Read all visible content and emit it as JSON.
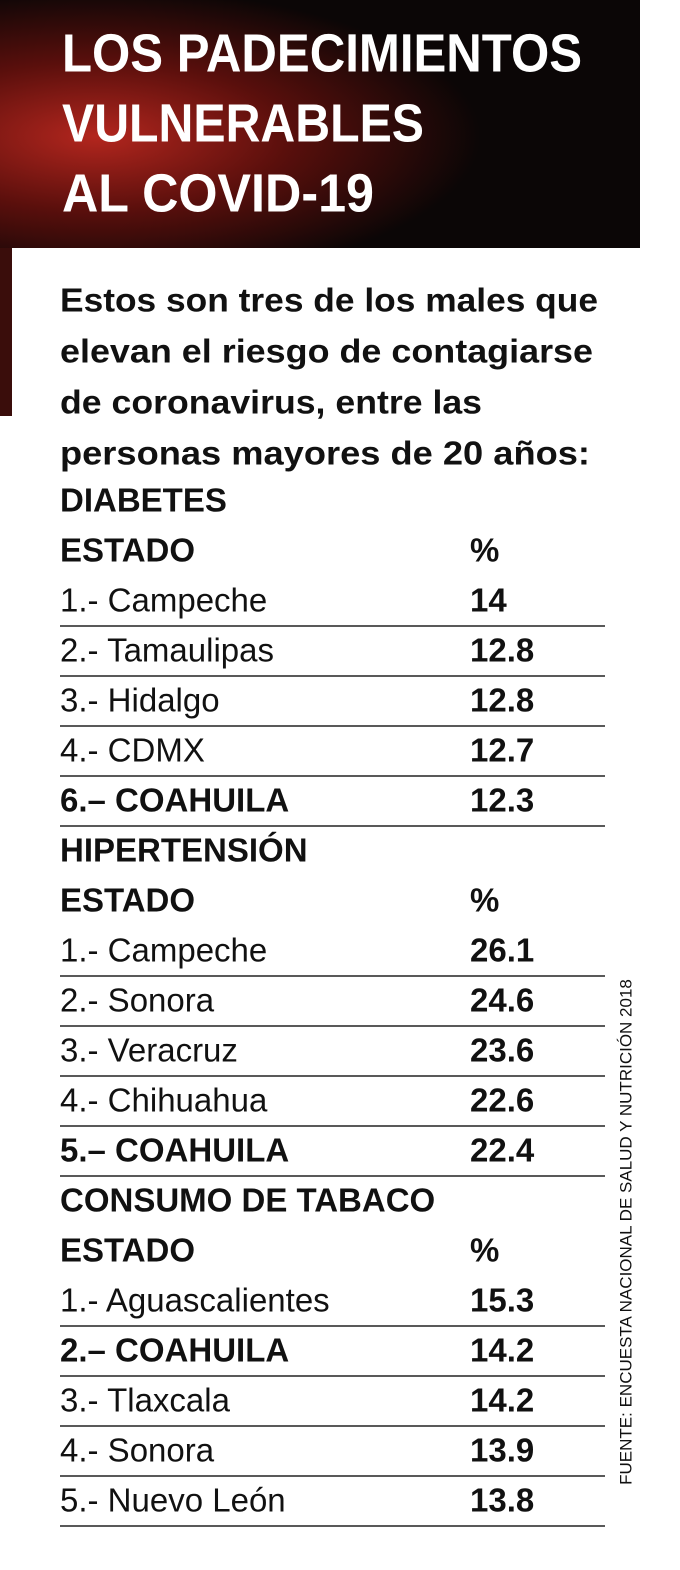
{
  "header": {
    "title": [
      "LOS PADECIMIENTOS",
      "VULNERABLES",
      "AL COVID-19"
    ]
  },
  "intro": [
    "Estos son tres de los males que",
    "elevan el riesgo de contagiarse",
    "de coronavirus, entre las",
    "personas mayores de 20 años:"
  ],
  "sections": [
    {
      "title": "DIABETES",
      "columns": [
        "ESTADO",
        "%"
      ],
      "rows": [
        {
          "label": "1.- Campeche",
          "value": 14
        },
        {
          "label": "2.- Tamaulipas",
          "value": 12.8
        },
        {
          "label": "3.- Hidalgo",
          "value": 12.8
        },
        {
          "label": "4.- CDMX",
          "value": 12.7
        },
        {
          "label": "6.– COAHUILA",
          "value": 12.3,
          "bold": true
        }
      ]
    },
    {
      "title": "HIPERTENSIÓN",
      "columns": [
        "ESTADO",
        "%"
      ],
      "rows": [
        {
          "label": "1.- Campeche",
          "value": 26.1
        },
        {
          "label": "2.- Sonora",
          "value": 24.6
        },
        {
          "label": "3.- Veracruz",
          "value": 23.6
        },
        {
          "label": "4.- Chihuahua",
          "value": 22.6
        },
        {
          "label": "5.– COAHUILA",
          "value": 22.4,
          "bold": true
        }
      ]
    },
    {
      "title": "CONSUMO DE TABACO",
      "columns": [
        "ESTADO",
        "%"
      ],
      "rows": [
        {
          "label": "1.- Aguascalientes",
          "value": 15.3
        },
        {
          "label": "2.– COAHUILA",
          "value": 14.2,
          "bold": true
        },
        {
          "label": "3.- Tlaxcala",
          "value": 14.2
        },
        {
          "label": "4.- Sonora",
          "value": 13.9
        },
        {
          "label": "5.- Nuevo León",
          "value": 13.8
        }
      ]
    }
  ],
  "source": "FUENTE: ENCUESTA NACIONAL DE SALUD Y NUTRICIÓN 2018"
}
